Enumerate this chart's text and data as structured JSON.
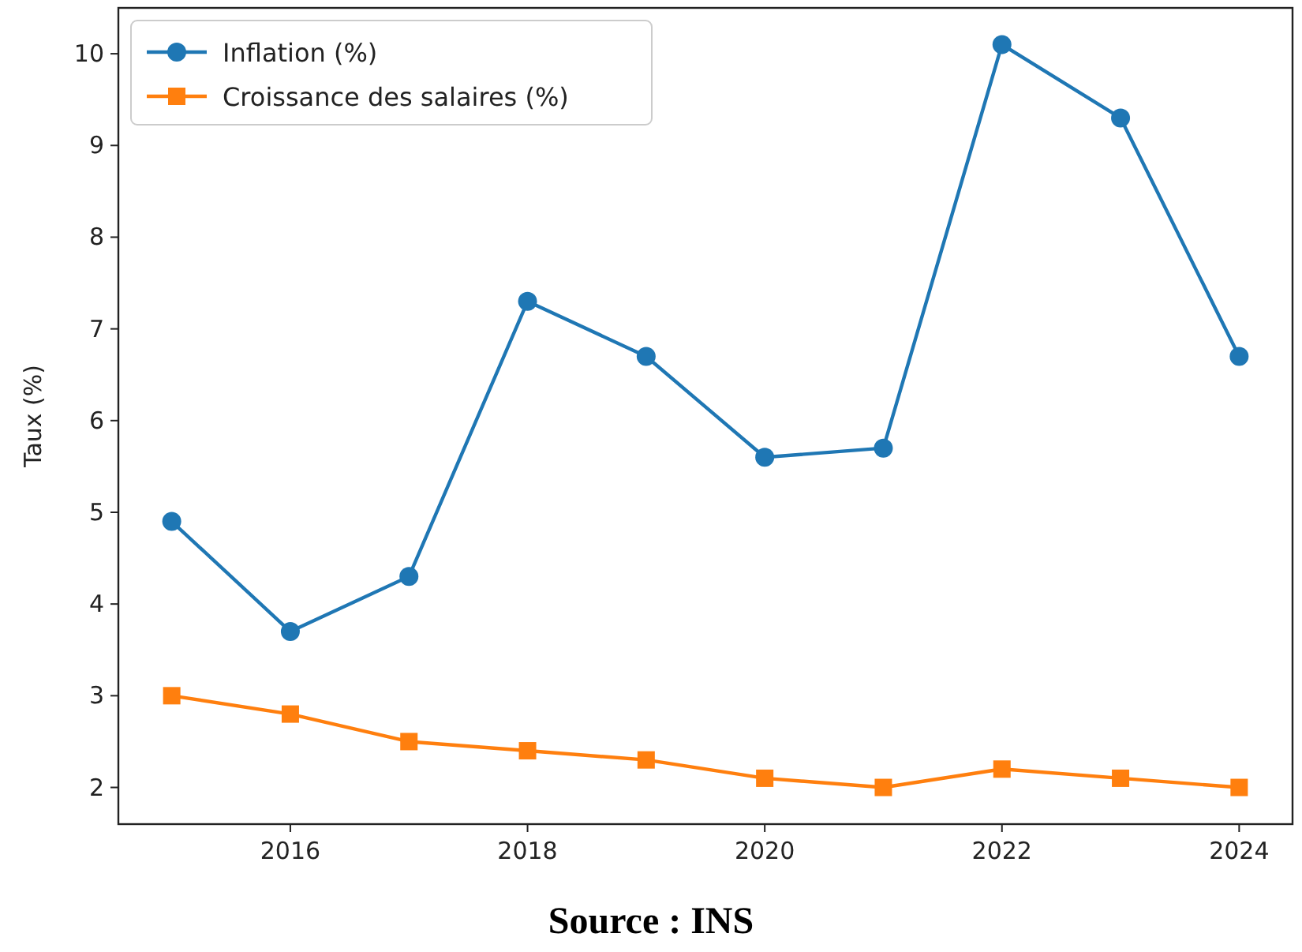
{
  "chart_data": {
    "type": "line",
    "ylabel": "Taux (%)",
    "x": [
      2015,
      2016,
      2017,
      2018,
      2019,
      2020,
      2021,
      2022,
      2023,
      2024
    ],
    "series": [
      {
        "name": "Inflation (%)",
        "color": "#1f77b4",
        "marker": "circle",
        "values": [
          4.9,
          3.7,
          4.3,
          7.3,
          6.7,
          5.6,
          5.7,
          10.1,
          9.3,
          6.7
        ]
      },
      {
        "name": "Croissance des salaires (%)",
        "color": "#ff7f0e",
        "marker": "square",
        "values": [
          3.0,
          2.8,
          2.5,
          2.4,
          2.3,
          2.1,
          2.0,
          2.2,
          2.1,
          2.0
        ]
      }
    ],
    "xlim": [
      2014.55,
      2024.45
    ],
    "xticks": [
      2016,
      2018,
      2020,
      2022,
      2024
    ],
    "ylim": [
      1.6,
      10.5
    ],
    "yticks": [
      2,
      3,
      4,
      5,
      6,
      7,
      8,
      9,
      10
    ],
    "grid": false,
    "legend": "top left",
    "line_style": "solid",
    "annotations": [
      "Source : INS"
    ]
  }
}
